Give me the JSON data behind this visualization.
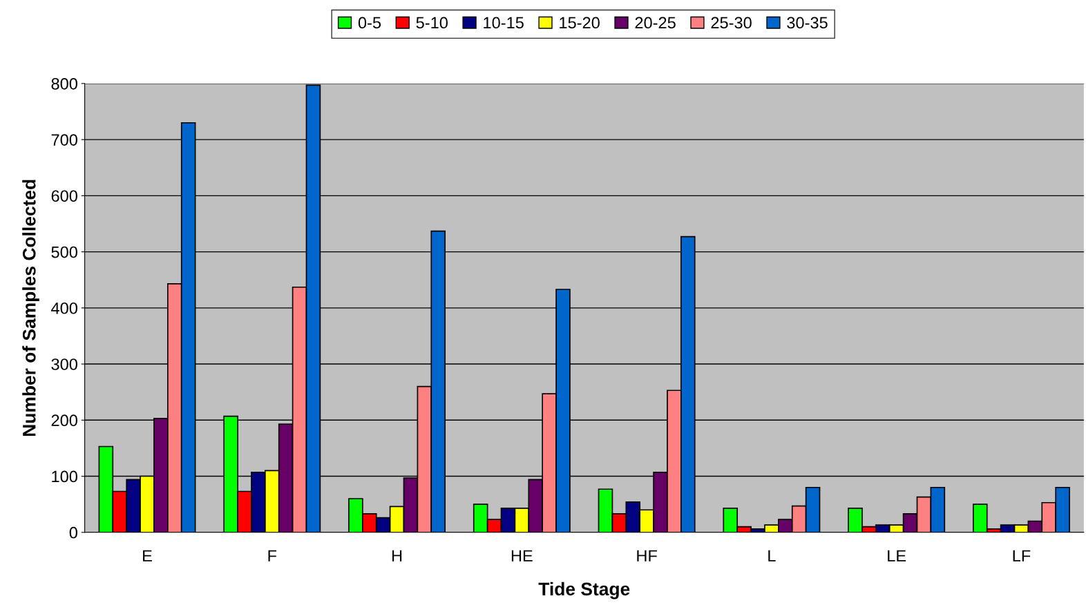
{
  "chart_data": {
    "type": "bar",
    "xlabel": "Tide Stage",
    "ylabel": "Number of Samples Collected",
    "categories": [
      "E",
      "F",
      "H",
      "HE",
      "HF",
      "L",
      "LE",
      "LF"
    ],
    "series": [
      {
        "name": "0-5",
        "color": "#00ff00",
        "values": [
          153,
          207,
          60,
          50,
          77,
          43,
          43,
          50
        ]
      },
      {
        "name": "5-10",
        "color": "#ff0000",
        "values": [
          73,
          73,
          33,
          23,
          33,
          10,
          10,
          6
        ]
      },
      {
        "name": "10-15",
        "color": "#000080",
        "values": [
          94,
          107,
          26,
          43,
          54,
          6,
          13,
          13
        ]
      },
      {
        "name": "15-20",
        "color": "#ffff00",
        "values": [
          100,
          110,
          46,
          43,
          40,
          13,
          13,
          13
        ]
      },
      {
        "name": "20-25",
        "color": "#660066",
        "values": [
          203,
          193,
          97,
          94,
          107,
          23,
          33,
          20
        ]
      },
      {
        "name": "25-30",
        "color": "#ff8080",
        "values": [
          443,
          437,
          260,
          247,
          253,
          47,
          63,
          53
        ]
      },
      {
        "name": "30-35",
        "color": "#0066cc",
        "values": [
          730,
          797,
          537,
          433,
          527,
          80,
          80,
          80
        ]
      }
    ],
    "ylim": [
      0,
      800
    ],
    "yticks": [
      0,
      100,
      200,
      300,
      400,
      500,
      600,
      700,
      800
    ],
    "grid": "y",
    "legend": "top"
  }
}
